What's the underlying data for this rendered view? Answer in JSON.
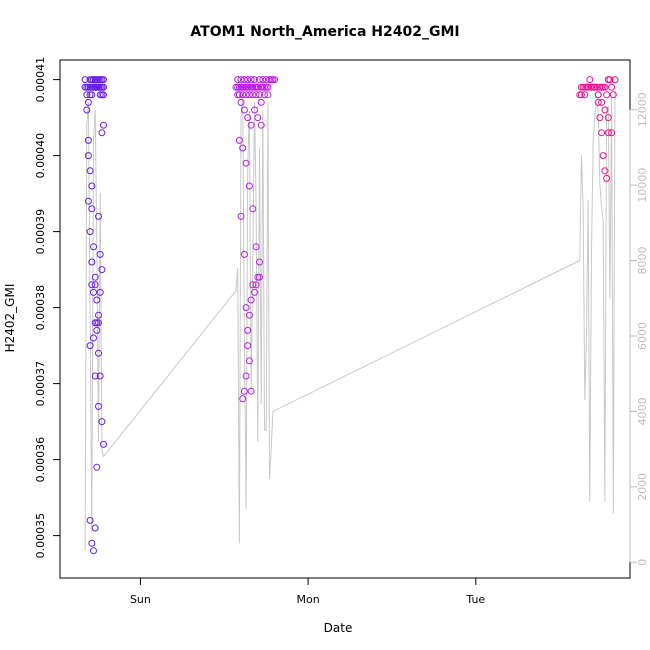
{
  "chart_data": {
    "type": "scatter",
    "title": "ATOM1 North_America H2402_GMI",
    "xlabel": "Date",
    "ylabel": "H2402_GMI",
    "x_ticks": [
      "Sun",
      "Mon",
      "Tue"
    ],
    "y_ticks": [
      "0.00035",
      "0.00036",
      "0.00037",
      "0.00038",
      "0.00039",
      "0.00040",
      "0.00041"
    ],
    "y_right_ticks": [
      "0",
      "2000",
      "4000",
      "6000",
      "8000",
      "10000",
      "12000"
    ],
    "xlim_days": [
      -0.42,
      2.86
    ],
    "ylim": [
      0.000346,
      0.000411
    ],
    "y_right_lim": [
      -100,
      13000
    ],
    "grid": false,
    "colors": {
      "points_start": "#5a1ee6",
      "points_mid": "#e61ee6",
      "points_end": "#e6148c",
      "altitude_line": "#c8c8c8",
      "right_axis": "#bdbdbd"
    },
    "series": [
      {
        "marker": "open-circle",
        "x_days": [
          -0.33,
          -0.33,
          -0.32,
          -0.32,
          -0.31,
          -0.31,
          -0.3,
          -0.3,
          -0.3,
          -0.29,
          -0.29,
          -0.29,
          -0.28,
          -0.28,
          -0.28,
          -0.27,
          -0.27,
          -0.27,
          -0.27,
          -0.26,
          -0.26,
          -0.26,
          -0.25,
          -0.25,
          -0.25,
          -0.25,
          -0.24,
          -0.24,
          -0.24,
          -0.24,
          -0.23,
          -0.23,
          -0.23,
          -0.23,
          -0.22,
          -0.22,
          -0.22,
          -0.32,
          -0.31,
          -0.3,
          -0.29,
          -0.28,
          -0.27,
          -0.26,
          -0.25,
          -0.24,
          -0.23,
          -0.22,
          -0.3,
          -0.29,
          -0.28,
          -0.27,
          -0.26,
          -0.25,
          -0.31,
          -0.3,
          -0.29,
          -0.28,
          -0.27,
          -0.26,
          -0.25,
          -0.24,
          -0.23,
          -0.22,
          -0.31,
          -0.29,
          -0.27,
          -0.25,
          -0.3,
          -0.28,
          -0.26,
          -0.24,
          -0.29,
          -0.27,
          -0.25,
          -0.23
        ],
        "y": [
          0.00041,
          0.000409,
          0.000409,
          0.000408,
          0.000407,
          0.000409,
          0.00041,
          0.000409,
          0.000408,
          0.000408,
          0.000409,
          0.00041,
          0.000409,
          0.000409,
          0.00041,
          0.000409,
          0.000409,
          0.00041,
          0.000409,
          0.000409,
          0.000409,
          0.00041,
          0.000409,
          0.000409,
          0.000409,
          0.00041,
          0.000409,
          0.000408,
          0.00041,
          0.000409,
          0.000409,
          0.00041,
          0.000409,
          0.000408,
          0.000408,
          0.000409,
          0.00041,
          0.000406,
          0.000402,
          0.000398,
          0.000393,
          0.000388,
          0.000383,
          0.000378,
          0.000374,
          0.000371,
          0.000365,
          0.000362,
          0.000352,
          0.000349,
          0.000348,
          0.000351,
          0.000359,
          0.000367,
          0.000394,
          0.00039,
          0.000386,
          0.000382,
          0.000378,
          0.000377,
          0.000379,
          0.000382,
          0.000403,
          0.000404,
          0.0004,
          0.000396,
          0.000384,
          0.000392,
          0.000375,
          0.000376,
          0.000381,
          0.000387,
          0.000383,
          0.000371,
          0.000378,
          0.000385
        ]
      },
      {
        "marker": "open-circle",
        "x_days": [
          0.57,
          0.58,
          0.58,
          0.59,
          0.59,
          0.6,
          0.6,
          0.61,
          0.61,
          0.62,
          0.62,
          0.63,
          0.63,
          0.64,
          0.64,
          0.65,
          0.65,
          0.66,
          0.66,
          0.67,
          0.67,
          0.68,
          0.68,
          0.69,
          0.69,
          0.7,
          0.7,
          0.71,
          0.71,
          0.72,
          0.72,
          0.73,
          0.73,
          0.74,
          0.74,
          0.75,
          0.75,
          0.76,
          0.76,
          0.77,
          0.78,
          0.79,
          0.8,
          0.58,
          0.6,
          0.62,
          0.64,
          0.66,
          0.68,
          0.7,
          0.72,
          0.59,
          0.61,
          0.63,
          0.65,
          0.67,
          0.69,
          0.71,
          0.6,
          0.62,
          0.63,
          0.64,
          0.65,
          0.66,
          0.61,
          0.62,
          0.63,
          0.64,
          0.65,
          0.66,
          0.67,
          0.68,
          0.69,
          0.7,
          0.71
        ],
        "y": [
          0.000409,
          0.00041,
          0.000409,
          0.000409,
          0.000408,
          0.00041,
          0.000409,
          0.000408,
          0.000409,
          0.00041,
          0.000409,
          0.000409,
          0.000408,
          0.000409,
          0.00041,
          0.000409,
          0.000408,
          0.000409,
          0.00041,
          0.000409,
          0.000408,
          0.000409,
          0.00041,
          0.000409,
          0.000408,
          0.000409,
          0.000409,
          0.00041,
          0.000408,
          0.000409,
          0.000407,
          0.000409,
          0.00041,
          0.000408,
          0.000409,
          0.000409,
          0.00041,
          0.000409,
          0.000408,
          0.00041,
          0.00041,
          0.00041,
          0.00041,
          0.000408,
          0.000407,
          0.000406,
          0.000405,
          0.000404,
          0.000406,
          0.000405,
          0.000404,
          0.000402,
          0.000401,
          0.000399,
          0.000396,
          0.000393,
          0.000388,
          0.000384,
          0.000392,
          0.000387,
          0.00038,
          0.000377,
          0.000373,
          0.000369,
          0.000368,
          0.000369,
          0.000371,
          0.000375,
          0.000379,
          0.000381,
          0.000383,
          0.000382,
          0.000383,
          0.000384,
          0.000386
        ]
      },
      {
        "marker": "open-circle",
        "x_days": [
          2.62,
          2.63,
          2.64,
          2.65,
          2.66,
          2.67,
          2.68,
          2.69,
          2.7,
          2.71,
          2.72,
          2.73,
          2.74,
          2.75,
          2.76,
          2.77,
          2.78,
          2.79,
          2.8,
          2.81,
          2.82,
          2.83,
          2.63,
          2.65,
          2.67,
          2.69,
          2.71,
          2.73,
          2.75,
          2.77,
          2.79,
          2.81,
          2.73,
          2.74,
          2.75,
          2.76,
          2.77,
          2.78,
          2.79
        ],
        "y": [
          0.000408,
          0.000409,
          0.000409,
          0.000409,
          0.000409,
          0.000409,
          0.00041,
          0.000409,
          0.000409,
          0.000409,
          0.000409,
          0.000408,
          0.000409,
          0.000409,
          0.000409,
          0.000409,
          0.000408,
          0.00041,
          0.00041,
          0.000409,
          0.000408,
          0.00041,
          0.000408,
          0.000408,
          0.000409,
          0.000409,
          0.000409,
          0.000408,
          0.000407,
          0.000406,
          0.000405,
          0.000403,
          0.000407,
          0.000405,
          0.000403,
          0.0004,
          0.000398,
          0.000397,
          0.000403
        ]
      }
    ],
    "altitude_line": {
      "x_days": [
        -0.33,
        -0.32,
        -0.31,
        -0.3,
        -0.29,
        -0.28,
        -0.27,
        -0.26,
        -0.25,
        -0.24,
        -0.23,
        -0.22,
        0.57,
        0.58,
        0.59,
        0.6,
        0.61,
        0.62,
        0.63,
        0.64,
        0.65,
        0.66,
        0.67,
        0.68,
        0.69,
        0.7,
        0.71,
        0.72,
        0.73,
        0.74,
        0.75,
        0.76,
        0.77,
        0.78,
        0.79,
        2.62,
        2.63,
        2.64,
        2.65,
        2.66,
        2.67,
        2.68,
        2.69,
        2.7,
        2.71,
        2.72,
        2.73,
        2.74,
        2.75,
        2.76,
        2.77,
        2.78,
        2.79,
        2.8,
        2.81,
        2.82,
        2.83
      ],
      "y": [
        300,
        11600,
        12200,
        6500,
        800,
        11200,
        12000,
        8500,
        3200,
        9800,
        3000,
        2800,
        7200,
        7800,
        500,
        11800,
        12400,
        6000,
        1400,
        10500,
        12000,
        4500,
        8000,
        12200,
        9500,
        3200,
        11000,
        4200,
        12000,
        3500,
        3500,
        12200,
        2200,
        3000,
        4000,
        8000,
        10800,
        9500,
        4300,
        6000,
        9600,
        1600,
        8300,
        11200,
        11800,
        12200,
        12000,
        10000,
        9400,
        9000,
        1600,
        12000,
        12100,
        7000,
        12300,
        1300,
        12500
      ]
    }
  }
}
